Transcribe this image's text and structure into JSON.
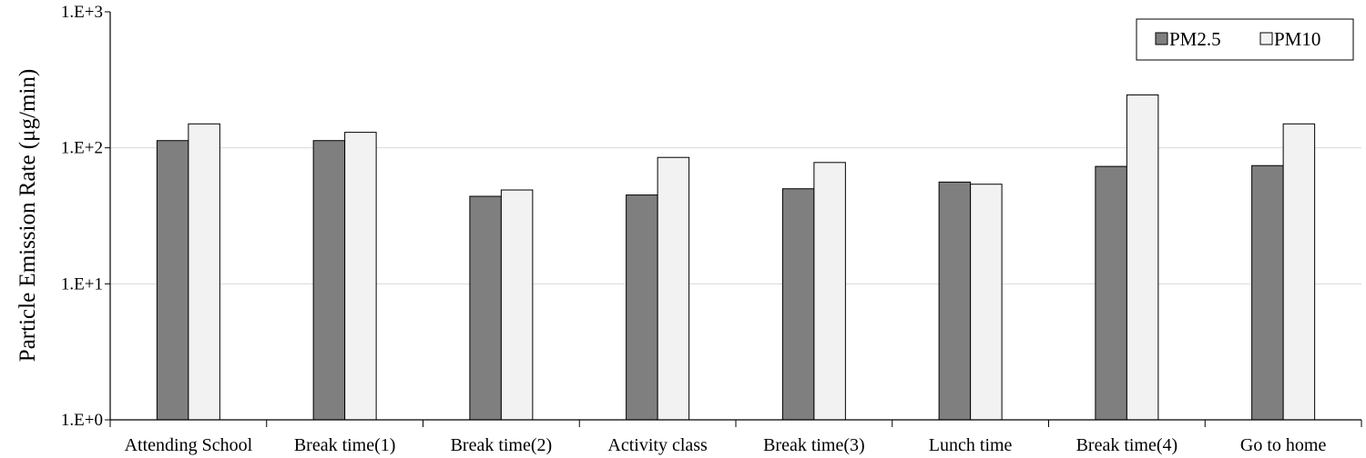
{
  "chart_data": {
    "type": "bar",
    "ylabel": "Particle Emission Rate (μg/min)",
    "y_scale": "log",
    "ylim": [
      1,
      1000
    ],
    "y_ticks": [
      1,
      10,
      100,
      1000
    ],
    "y_tick_labels": [
      "1.E+0",
      "1.E+1",
      "1.E+2",
      "1.E+3"
    ],
    "grid": true,
    "legend_position": "top-right",
    "categories": [
      "Attending School",
      "Break time(1)",
      "Break time(2)",
      "Activity class",
      "Break time(3)",
      "Lunch time",
      "Break time(4)",
      "Go to home"
    ],
    "series": [
      {
        "name": "PM2.5",
        "color": "#7f7f7f",
        "values": [
          113,
          113,
          44,
          45,
          50,
          56,
          73,
          74
        ]
      },
      {
        "name": "PM10",
        "color": "#f2f2f2",
        "values": [
          150,
          130,
          49,
          85,
          78,
          54,
          245,
          150
        ]
      }
    ]
  }
}
